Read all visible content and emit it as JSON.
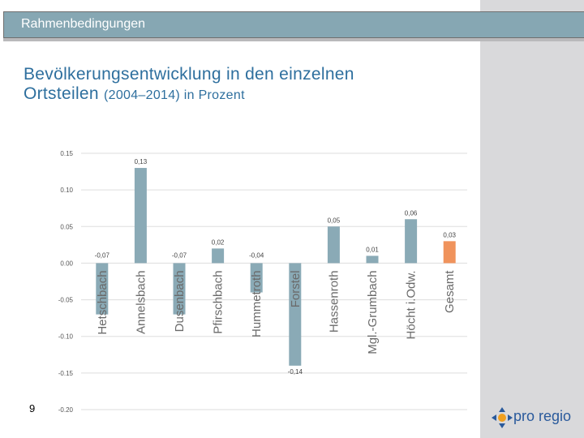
{
  "header": {
    "title": "Rahmenbedingungen"
  },
  "slide": {
    "title_line1": "Bevölkerungsentwicklung in den einzelnen",
    "title_line2_main": "Ortsteilen ",
    "title_line2_small": "(2004–2014) in Prozent",
    "page_number": "9"
  },
  "logo": {
    "text": "pro regio"
  },
  "colors": {
    "bar": "#8aaab6",
    "highlight": "#f0935c",
    "grid": "#dddddd",
    "label": "#555555"
  },
  "chart_data": {
    "type": "bar",
    "title": "",
    "categories": [
      "Hetschbach",
      "Annelsbach",
      "Dusenbach",
      "Pfirschbach",
      "Hummetroth",
      "Forstel",
      "Hassenroth",
      "Mgl.-Grumbach",
      "Höcht i.Odw.",
      "Gesamt"
    ],
    "values": [
      -0.07,
      0.13,
      -0.07,
      0.02,
      -0.04,
      -0.14,
      0.05,
      0.01,
      0.06,
      0.03
    ],
    "value_labels": [
      "-0,07",
      "0,13",
      "-0,07",
      "0,02",
      "-0,04",
      "-0,14",
      "0,05",
      "0,01",
      "0,06",
      "0,03"
    ],
    "highlight_index": 9,
    "yticks": [
      0.15,
      0.1,
      0.05,
      0.0,
      -0.05,
      -0.1,
      -0.15,
      -0.2
    ],
    "ytick_labels": [
      "0.15",
      "0.10",
      "0.05",
      "0.00",
      "-0.05",
      "-0.10",
      "-0.15",
      "-0.20"
    ],
    "ylim": [
      -0.2,
      0.15
    ],
    "xlabel": "",
    "ylabel": ""
  }
}
